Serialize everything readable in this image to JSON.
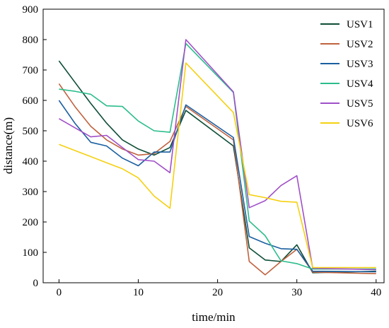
{
  "chart_data": {
    "type": "line",
    "xlabel": "time/min",
    "ylabel": "distance(m)",
    "xlim": [
      -2,
      41
    ],
    "ylim": [
      0,
      900
    ],
    "xticks": [
      0,
      10,
      20,
      30,
      40
    ],
    "yticks": [
      0,
      100,
      200,
      300,
      400,
      500,
      600,
      700,
      800,
      900
    ],
    "grid": false,
    "legend_position": "top-right",
    "series": [
      {
        "name": "USV1",
        "color": "#0e4d36",
        "x": [
          0,
          2,
          4,
          6,
          8,
          10,
          12,
          14,
          16,
          22,
          24,
          26,
          28,
          30,
          32,
          40
        ],
        "y": [
          730,
          660,
          590,
          525,
          470,
          440,
          420,
          445,
          567,
          450,
          115,
          75,
          70,
          125,
          33,
          38
        ]
      },
      {
        "name": "USV2",
        "color": "#c0623e",
        "x": [
          0,
          2,
          4,
          6,
          8,
          10,
          12,
          14,
          16,
          22,
          24,
          26,
          28,
          30,
          32,
          40
        ],
        "y": [
          655,
          580,
          515,
          470,
          440,
          420,
          425,
          465,
          580,
          470,
          70,
          26,
          70,
          110,
          35,
          30
        ]
      },
      {
        "name": "USV3",
        "color": "#1a5fa0",
        "x": [
          0,
          2,
          4,
          6,
          8,
          10,
          12,
          14,
          16,
          22,
          24,
          26,
          28,
          30,
          32,
          40
        ],
        "y": [
          600,
          525,
          462,
          450,
          410,
          385,
          430,
          430,
          585,
          478,
          152,
          130,
          112,
          110,
          38,
          36
        ]
      },
      {
        "name": "USV4",
        "color": "#2bbd8b",
        "x": [
          0,
          2,
          4,
          6,
          8,
          10,
          12,
          14,
          16,
          22,
          24,
          26,
          28,
          30,
          32,
          40
        ],
        "y": [
          637,
          630,
          620,
          582,
          580,
          532,
          500,
          495,
          787,
          626,
          203,
          155,
          72,
          63,
          45,
          45
        ]
      },
      {
        "name": "USV5",
        "color": "#a050c8",
        "x": [
          0,
          2,
          4,
          6,
          8,
          10,
          12,
          14,
          16,
          22,
          24,
          26,
          28,
          30,
          32,
          40
        ],
        "y": [
          540,
          510,
          480,
          485,
          445,
          405,
          400,
          362,
          800,
          628,
          247,
          270,
          320,
          352,
          48,
          43
        ]
      },
      {
        "name": "USV6",
        "color": "#f5d010",
        "x": [
          0,
          2,
          4,
          6,
          8,
          10,
          12,
          14,
          16,
          22,
          24,
          26,
          28,
          30,
          32,
          40
        ],
        "y": [
          455,
          435,
          415,
          395,
          375,
          345,
          285,
          245,
          723,
          560,
          290,
          280,
          268,
          265,
          50,
          50
        ]
      }
    ]
  }
}
